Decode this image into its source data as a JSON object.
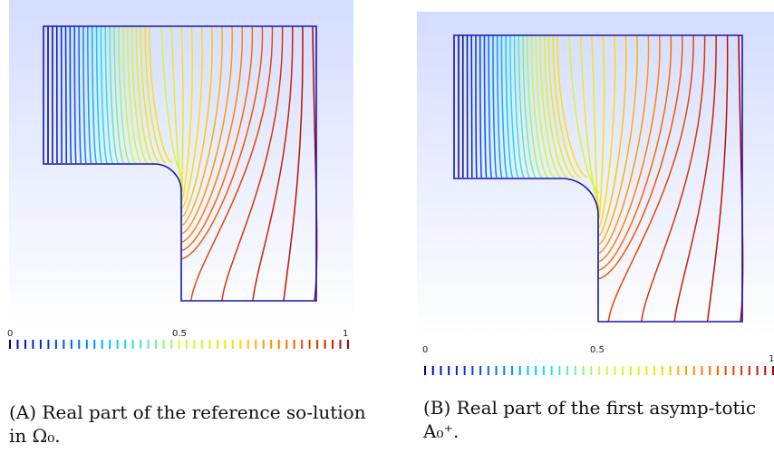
{
  "figure": {
    "panels": [
      {
        "id": "a",
        "colorbar": {
          "min_label": "0",
          "mid_label": "0.5",
          "max_label": "1"
        },
        "caption": {
          "tag": "(A)",
          "text": "Real part of the reference so-lution in Ω₀."
        }
      },
      {
        "id": "b",
        "colorbar": {
          "min_label": "0",
          "mid_label": "0.5",
          "max_label": "1"
        },
        "caption": {
          "tag": "(B)",
          "text": "Real part of the first asymp-totic A₀⁺."
        }
      }
    ],
    "colors": {
      "background_top": "#d4dcff",
      "background_bottom": "#ffffff",
      "domain_border": "#1515b0",
      "colormap": [
        "#00008f",
        "#0050ff",
        "#00e0ff",
        "#c8ff40",
        "#ffe000",
        "#ff6000",
        "#b00000"
      ]
    }
  }
}
